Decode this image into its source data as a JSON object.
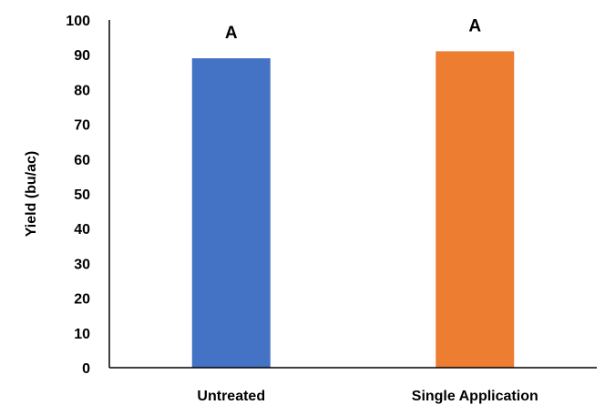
{
  "chart_data": {
    "type": "bar",
    "title": "",
    "xlabel": "",
    "ylabel": "Yield (bu/ac)",
    "ylim": [
      0,
      100
    ],
    "yticks": [
      0,
      10,
      20,
      30,
      40,
      50,
      60,
      70,
      80,
      90,
      100
    ],
    "grid": false,
    "legend": "none",
    "categories": [
      "Untreated",
      "Single Application"
    ],
    "values": [
      89,
      91
    ],
    "data_labels": [
      "A",
      "A"
    ],
    "colors": [
      "#4472C4",
      "#ED7D31"
    ]
  }
}
